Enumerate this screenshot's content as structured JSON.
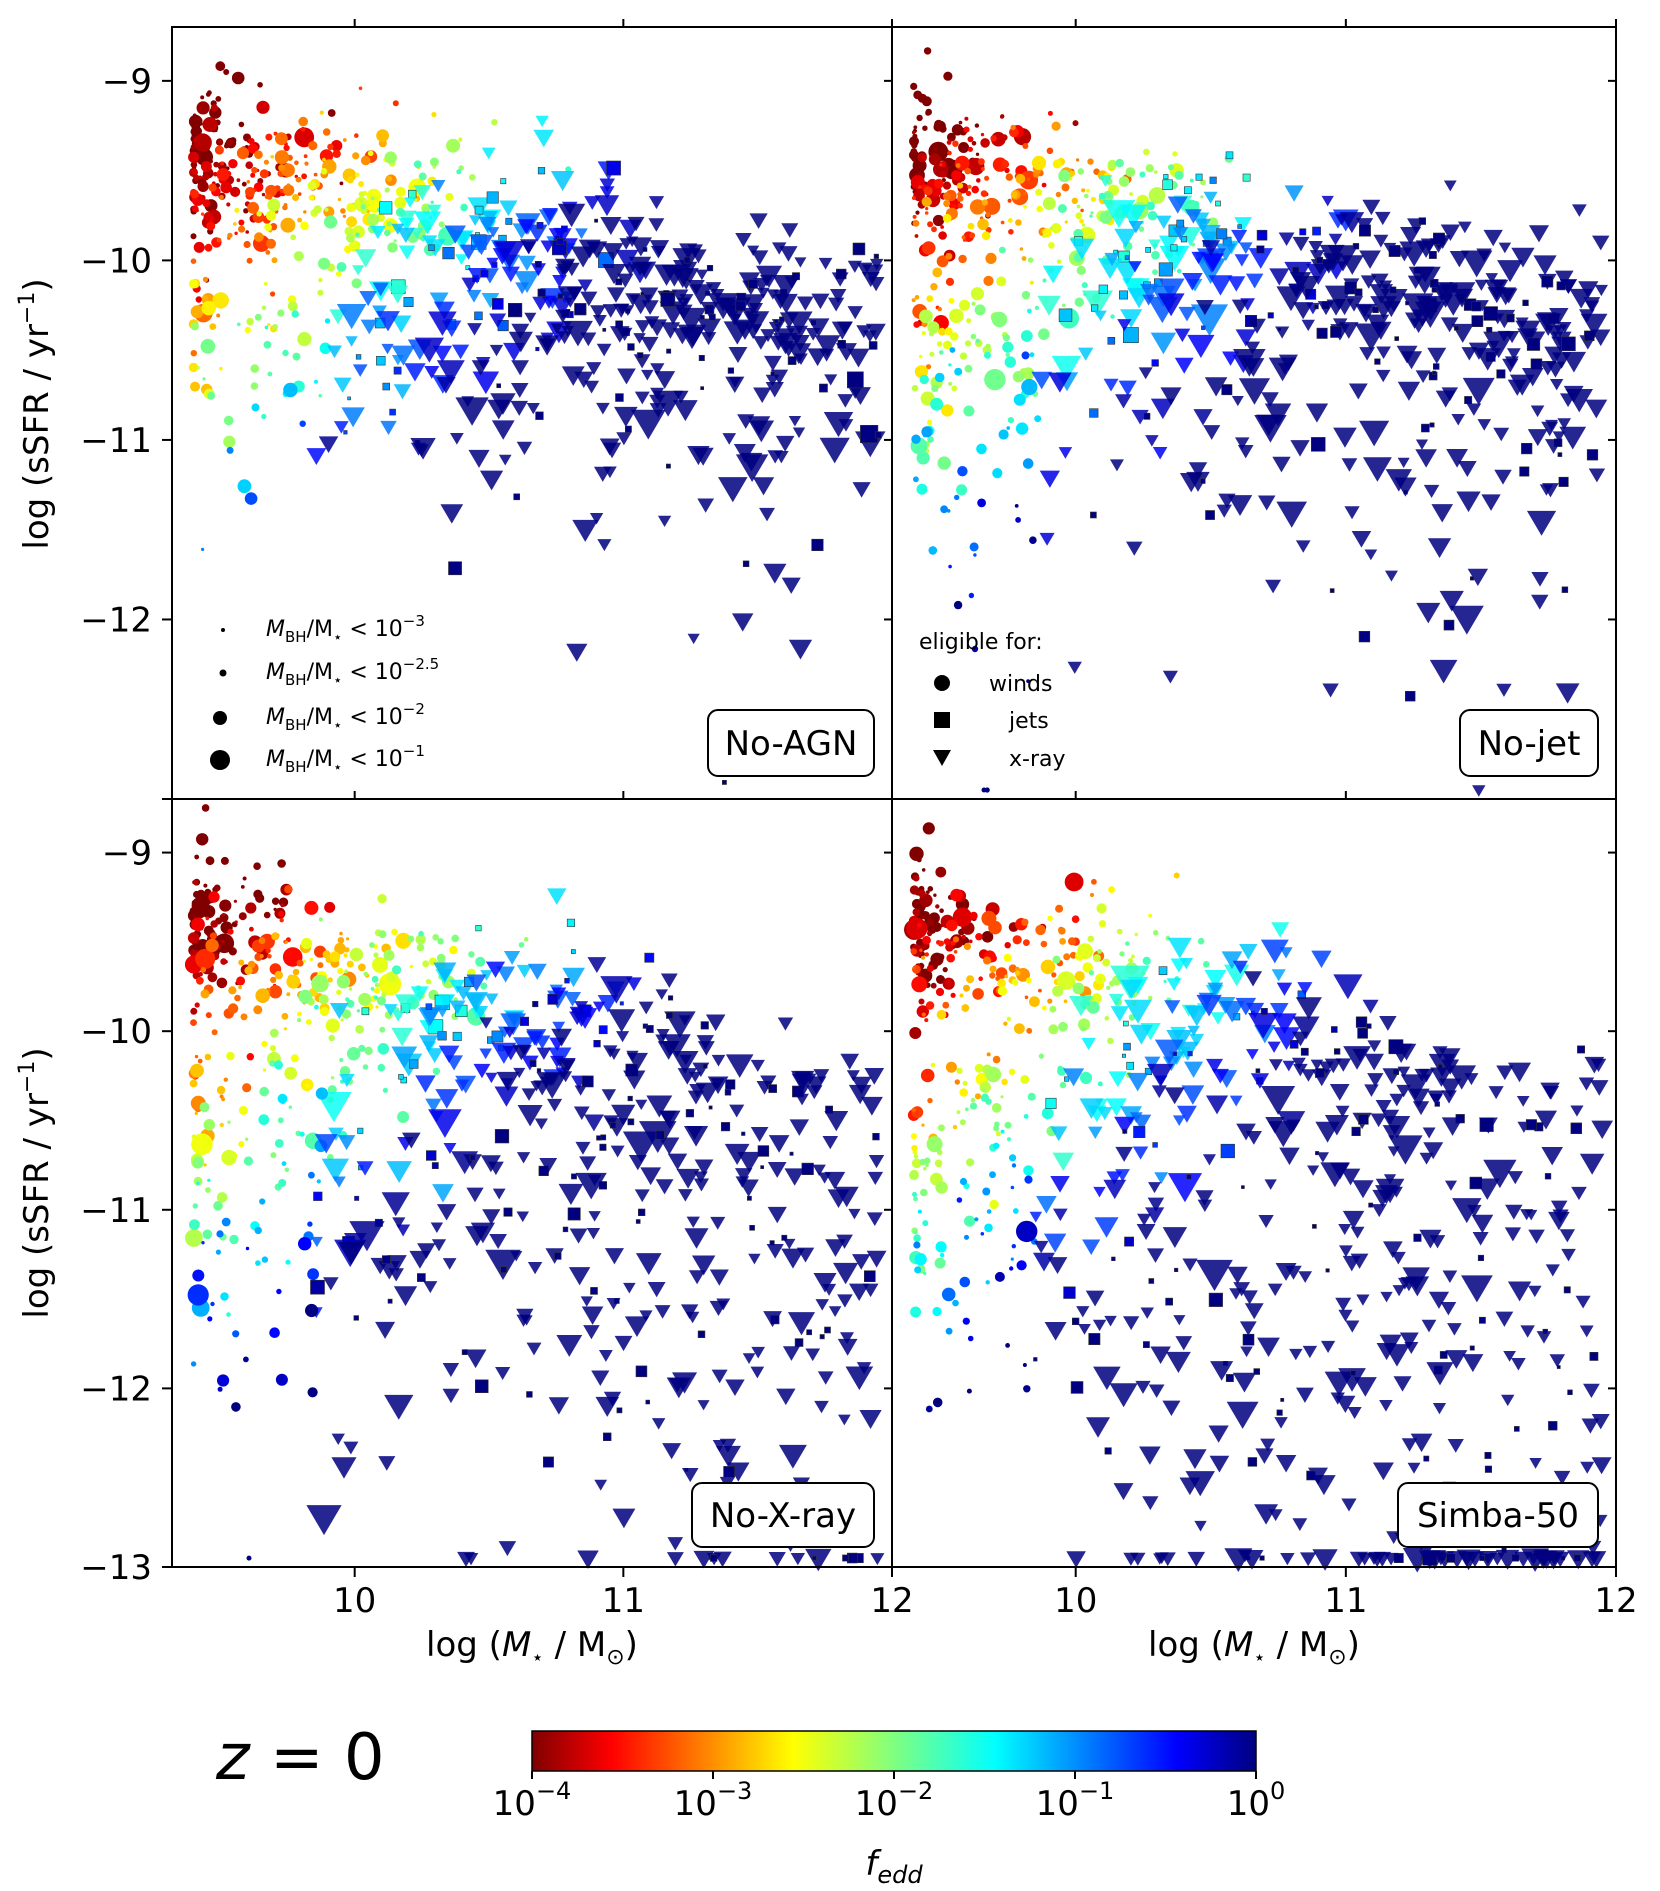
{
  "chart_data": {
    "type": "scatter",
    "figure_label": {
      "var": "z",
      "eq": " = ",
      "val": "0"
    },
    "panels": [
      {
        "name": "No-AGN",
        "row": 0,
        "col": 0,
        "cluster": {
          "quench_depth": 0.7,
          "jet_frac": 0.35,
          "low_mass_quench": 0.15
        }
      },
      {
        "name": "No-jet",
        "row": 0,
        "col": 1,
        "cluster": {
          "quench_depth": 0.8,
          "jet_frac": 0.45,
          "low_mass_quench": 0.55
        }
      },
      {
        "name": "No-X-ray",
        "row": 1,
        "col": 0,
        "cluster": {
          "quench_depth": 1.2,
          "jet_frac": 0.25,
          "low_mass_quench": 0.6
        }
      },
      {
        "name": "Simba-50",
        "row": 1,
        "col": 1,
        "cluster": {
          "quench_depth": 1.6,
          "jet_frac": 0.15,
          "low_mass_quench": 0.7
        }
      }
    ],
    "x_axis": {
      "label_pre": "log (",
      "label_var": "M",
      "label_sub": "⋆",
      "label_mid": " / M",
      "label_sub2": "⊙",
      "label_post": ")",
      "range": [
        9.32,
        12.0
      ],
      "ticks": [
        10,
        11,
        12
      ],
      "tick_labels": [
        "10",
        "11",
        "12"
      ]
    },
    "y_axis": {
      "label_pre": "log (sSFR / yr",
      "label_sup": "−1",
      "label_post": ")",
      "range": [
        -13.0,
        -8.7
      ],
      "ticks": [
        -9,
        -10,
        -11,
        -12,
        -13
      ],
      "tick_labels": [
        "−9",
        "−10",
        "−11",
        "−12",
        "−13"
      ]
    },
    "size_legend": {
      "entries": [
        {
          "text_pre": "M",
          "text_sub": "BH",
          "text_mid": "/M",
          "text_sub2": "⋆",
          "text_lt": " < 10",
          "text_sup": "−3",
          "marker_r": 2
        },
        {
          "text_pre": "M",
          "text_sub": "BH",
          "text_mid": "/M",
          "text_sub2": "⋆",
          "text_lt": " < 10",
          "text_sup": "−2.5",
          "marker_r": 3.5
        },
        {
          "text_pre": "M",
          "text_sub": "BH",
          "text_mid": "/M",
          "text_sub2": "⋆",
          "text_lt": " < 10",
          "text_sup": "−2",
          "marker_r": 7
        },
        {
          "text_pre": "M",
          "text_sub": "BH",
          "text_mid": "/M",
          "text_sub2": "⋆",
          "text_lt": " < 10",
          "text_sup": "−1",
          "marker_r": 10
        }
      ]
    },
    "marker_legend": {
      "title": "eligible for:",
      "entries": [
        {
          "label": "winds",
          "shape": "circle"
        },
        {
          "label": "jets",
          "shape": "square"
        },
        {
          "label": "x-ray",
          "shape": "triangle"
        }
      ]
    },
    "colorbar": {
      "label_main": "f",
      "label_sub": "edd",
      "colormap": "jet_r",
      "range_log": [
        -4,
        0
      ],
      "ticks": [
        -4,
        -3,
        -2,
        -1,
        0
      ],
      "tick_base": "10",
      "tick_exps": [
        "−4",
        "−3",
        "−2",
        "−1",
        "0"
      ]
    }
  }
}
